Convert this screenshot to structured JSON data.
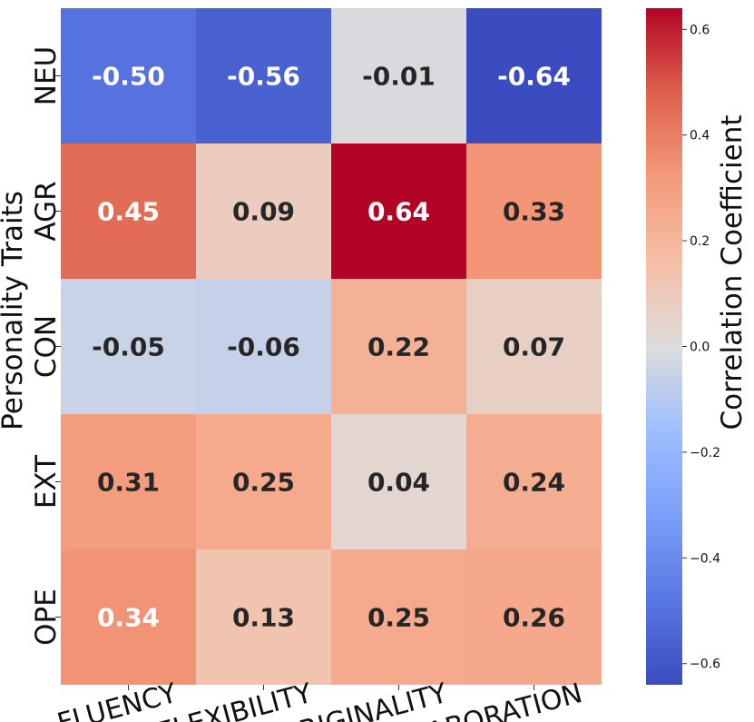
{
  "chart_data": {
    "type": "heatmap",
    "title": "",
    "xlabel": "",
    "ylabel": "Personality Traits",
    "x_categories": [
      "FLUENCY",
      "FLEXIBILITY",
      "ORIGINALITY",
      "ELABORATION"
    ],
    "y_categories": [
      "NEU",
      "AGR",
      "CON",
      "EXT",
      "OPE"
    ],
    "values": [
      [
        -0.5,
        -0.56,
        -0.01,
        -0.64
      ],
      [
        0.45,
        0.09,
        0.64,
        0.33
      ],
      [
        -0.05,
        -0.06,
        0.22,
        0.07
      ],
      [
        0.31,
        0.25,
        0.04,
        0.24
      ],
      [
        0.34,
        0.13,
        0.25,
        0.26
      ]
    ],
    "cell_labels": [
      [
        "-0.50",
        "-0.56",
        "-0.01",
        "-0.64"
      ],
      [
        "0.45",
        "0.09",
        "0.64",
        "0.33"
      ],
      [
        "-0.05",
        "-0.06",
        "0.22",
        "0.07"
      ],
      [
        "0.31",
        "0.25",
        "0.04",
        "0.24"
      ],
      [
        "0.34",
        "0.13",
        "0.25",
        "0.26"
      ]
    ],
    "colormap": "coolwarm",
    "vmin": -0.64,
    "vmax": 0.64,
    "colorbar": {
      "label": "Correlation Coefficient",
      "ticks": [
        0.6,
        0.4,
        0.2,
        0.0,
        -0.2,
        -0.4,
        -0.6
      ],
      "tick_labels": [
        "0.6",
        "0.4",
        "0.2",
        "0.0",
        "−0.2",
        "−0.4",
        "−0.6"
      ]
    }
  }
}
